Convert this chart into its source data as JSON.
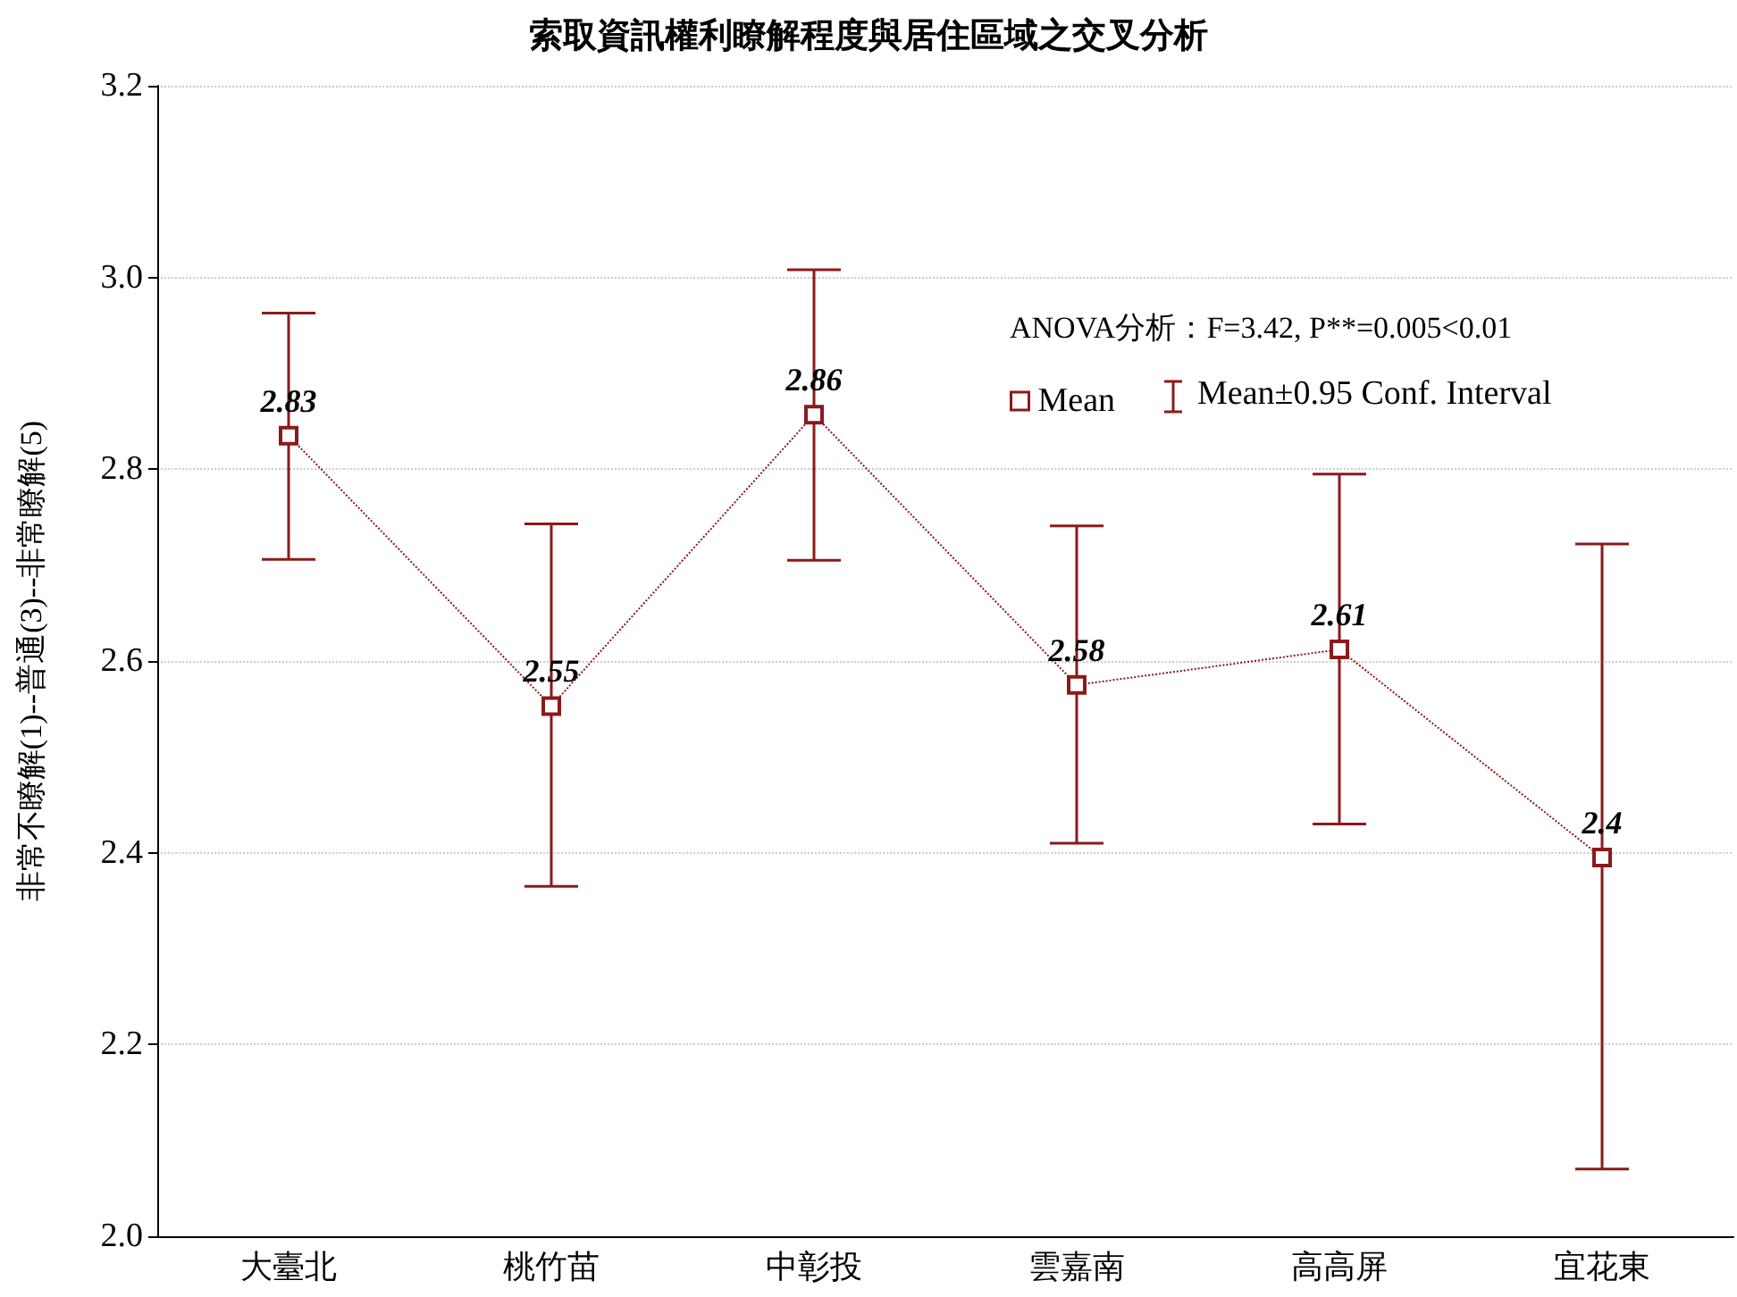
{
  "chart_data": {
    "type": "line",
    "title": "索取資訊權利瞭解程度與居住區域之交叉分析",
    "ylabel": "非常不瞭解(1)--普通(3)--非常瞭解(5)",
    "categories": [
      "大臺北",
      "桃竹苗",
      "中彰投",
      "雲嘉南",
      "高高屏",
      "宜花東"
    ],
    "series": [
      {
        "name": "Mean",
        "color": "#8b1a1a",
        "values": [
          2.835,
          2.553,
          2.857,
          2.575,
          2.612,
          2.395
        ],
        "value_labels": [
          "2.83",
          "2.55",
          "2.86",
          "2.58",
          "2.61",
          "2.4"
        ],
        "errors": [
          [
            2.706,
            2.963
          ],
          [
            2.365,
            2.743
          ],
          [
            2.705,
            3.008
          ],
          [
            2.41,
            2.741
          ],
          [
            2.43,
            2.795
          ],
          [
            2.07,
            2.722
          ]
        ]
      }
    ],
    "ylim": [
      2.0,
      3.2
    ],
    "yticks": [
      {
        "value": 2,
        "label": "2.0"
      },
      2.2,
      2.4,
      2.6,
      2.8,
      {
        "value": 3,
        "label": "3.0"
      },
      3.2
    ],
    "grid": "y",
    "legend": "top right",
    "marker": "square",
    "line_style": "dotted",
    "annotations": [
      "ANOVA分析：F=3.42, P**=0.005<0.01",
      "Mean±0.95 Conf. Interval"
    ]
  }
}
